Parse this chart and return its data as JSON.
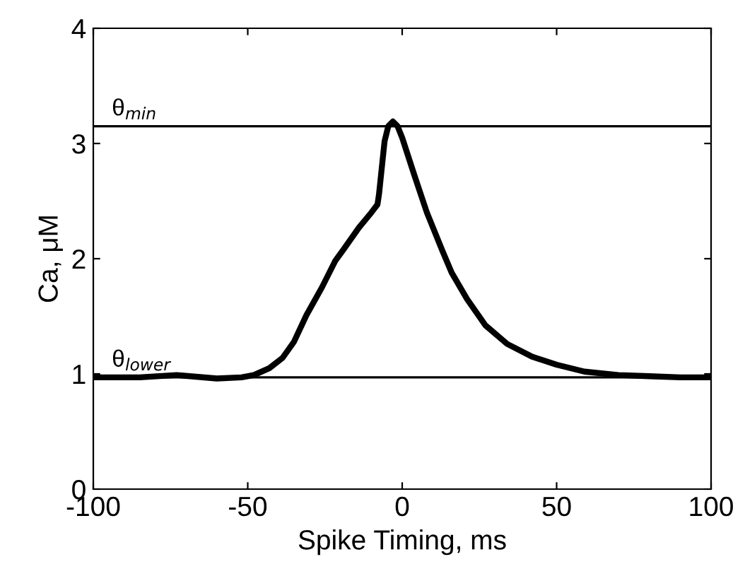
{
  "chart_data": {
    "type": "line",
    "xlabel": "Spike Timing, ms",
    "ylabel": "Ca, μM",
    "xlim": [
      -100,
      100
    ],
    "xticks": [
      -100,
      -50,
      0,
      50,
      100
    ],
    "ylim": [
      0,
      4
    ],
    "yticks": [
      0,
      1,
      2,
      3,
      4
    ],
    "grid": false,
    "legend": false,
    "marker": "none",
    "line_style": "solid",
    "series": [
      {
        "color": "#000000",
        "x": [
          -100,
          -85,
          -73,
          -60,
          -52,
          -48,
          -43,
          -38.7,
          -35,
          -31,
          -26,
          -21.7,
          -19,
          -14,
          -10,
          -8,
          -7.5,
          -5.7,
          -4.5,
          -3,
          -1.5,
          0,
          4,
          8,
          13,
          16,
          21,
          27,
          34,
          42,
          50,
          59,
          70,
          80,
          90,
          100
        ],
        "values": [
          0.97,
          0.97,
          0.99,
          0.96,
          0.97,
          0.99,
          1.05,
          1.14,
          1.28,
          1.51,
          1.75,
          1.98,
          2.08,
          2.27,
          2.4,
          2.47,
          2.56,
          3.02,
          3.15,
          3.19,
          3.15,
          3.05,
          2.72,
          2.4,
          2.07,
          1.88,
          1.65,
          1.42,
          1.26,
          1.15,
          1.08,
          1.02,
          0.99,
          0.98,
          0.97,
          0.97
        ]
      }
    ],
    "ref_lines": [
      {
        "axis": "y",
        "value": 3.15,
        "label": "θ$_{min}$",
        "color": "#000000"
      },
      {
        "axis": "y",
        "value": 0.97,
        "label": "θ$_{lower}$",
        "color": "#000000"
      }
    ]
  }
}
